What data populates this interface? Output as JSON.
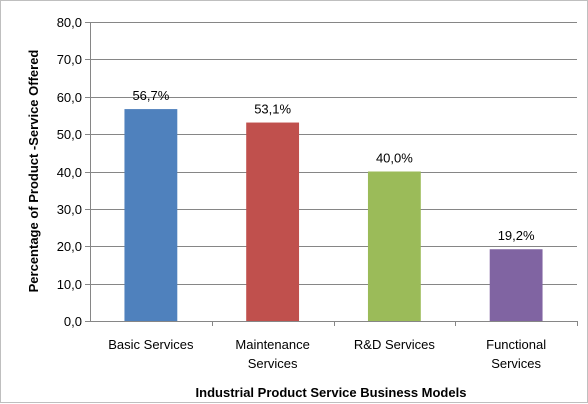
{
  "chart_data": {
    "type": "bar",
    "categories": [
      [
        "Basic Services"
      ],
      [
        "Maintenance",
        "Services"
      ],
      [
        "R&D Services"
      ],
      [
        "Functional",
        "Services"
      ]
    ],
    "values": [
      56.7,
      53.1,
      40.0,
      19.2
    ],
    "data_labels": [
      "56,7%",
      "53,1%",
      "40,0%",
      "19,2%"
    ],
    "colors": [
      "#4f81bd",
      "#c0504d",
      "#9bbb59",
      "#8064a2"
    ],
    "title": "",
    "xlabel": "Industrial Product Service Business Models",
    "ylabel": "Percentage of  Product -Service Offered",
    "ylim": [
      0,
      80
    ],
    "yticks": [
      0,
      10,
      20,
      30,
      40,
      50,
      60,
      70,
      80
    ],
    "ytick_labels": [
      "0,0",
      "10,0",
      "20,0",
      "30,0",
      "40,0",
      "50,0",
      "60,0",
      "70,0",
      "80,0"
    ],
    "grid": true,
    "legend": "none"
  }
}
